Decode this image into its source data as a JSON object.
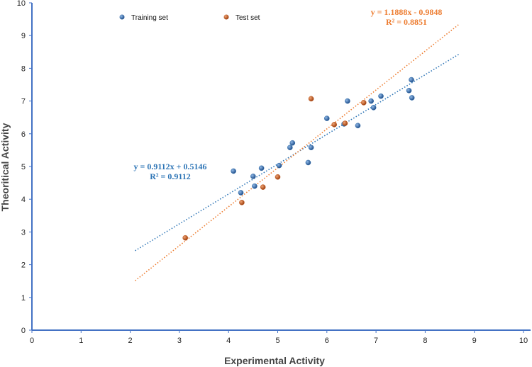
{
  "chart_data": {
    "type": "scatter",
    "title": "",
    "xlabel": "Experimental Activity",
    "ylabel": "Theoritical Activity",
    "xlim": [
      0,
      10
    ],
    "ylim": [
      0,
      10
    ],
    "xticks": [
      "0",
      "1",
      "2",
      "3",
      "4",
      "5",
      "6",
      "7",
      "8",
      "9",
      "10"
    ],
    "yticks": [
      "0",
      "1",
      "2",
      "3",
      "4",
      "5",
      "6",
      "7",
      "8",
      "9",
      "10"
    ],
    "legend_position": "top",
    "series": [
      {
        "name": "Training set",
        "color": "#2e6ead",
        "points": [
          [
            4.1,
            4.86
          ],
          [
            4.25,
            4.2
          ],
          [
            4.5,
            4.7
          ],
          [
            4.53,
            4.4
          ],
          [
            4.67,
            4.95
          ],
          [
            5.03,
            5.03
          ],
          [
            5.25,
            5.58
          ],
          [
            5.3,
            5.72
          ],
          [
            5.62,
            5.12
          ],
          [
            5.68,
            5.58
          ],
          [
            6.0,
            6.47
          ],
          [
            6.35,
            6.3
          ],
          [
            6.42,
            7.0
          ],
          [
            6.63,
            6.25
          ],
          [
            6.9,
            7.0
          ],
          [
            6.95,
            6.8
          ],
          [
            7.1,
            7.15
          ],
          [
            7.67,
            7.32
          ],
          [
            7.72,
            7.65
          ],
          [
            7.73,
            7.1
          ]
        ],
        "trendline": {
          "slope": 0.9112,
          "intercept": 0.5146,
          "x_range": [
            2.1,
            8.7
          ],
          "color": "#2e75b6",
          "equation": "y = 0.9112x + 0.5146",
          "r2": "R² = 0.9112"
        }
      },
      {
        "name": "Test set",
        "color": "#c0561b",
        "points": [
          [
            3.12,
            2.82
          ],
          [
            4.27,
            3.9
          ],
          [
            4.7,
            4.37
          ],
          [
            5.0,
            4.68
          ],
          [
            5.68,
            7.07
          ],
          [
            6.15,
            6.28
          ],
          [
            6.37,
            6.32
          ],
          [
            6.75,
            6.95
          ]
        ],
        "trendline": {
          "slope": 1.1888,
          "intercept": -0.9848,
          "x_range": [
            2.1,
            8.7
          ],
          "color": "#ed7d31",
          "equation": "y = 1.1888x - 0.9848",
          "r2": "R² = 0.8851"
        }
      }
    ]
  }
}
